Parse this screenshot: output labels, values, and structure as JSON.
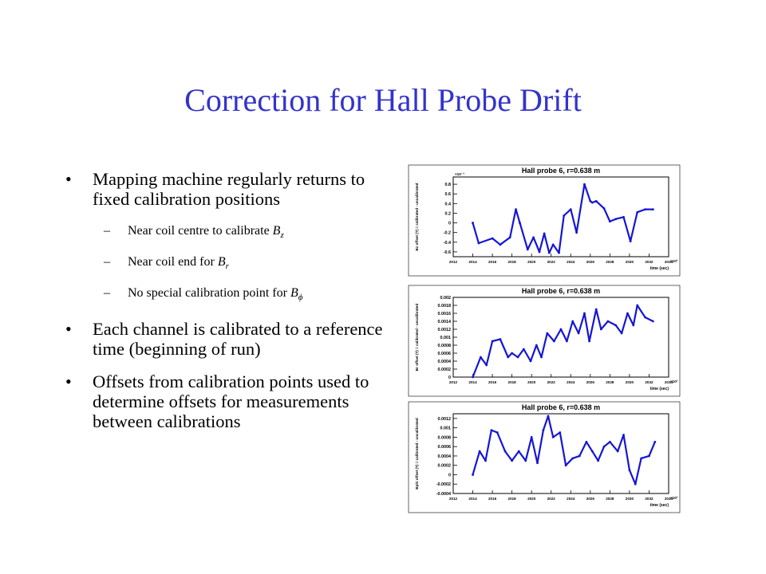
{
  "slide": {
    "title": "Correction for Hall Probe Drift",
    "bullets": [
      {
        "text": "Mapping machine regularly returns to fixed calibration positions"
      },
      {
        "text": "Each channel is calibrated to a reference time (beginning of run)"
      },
      {
        "text": "Offsets from calibration points used to determine offsets for measurements between calibrations"
      }
    ],
    "sub_bullets": [
      {
        "prefix": "Near coil centre to calibrate ",
        "sym": "B",
        "sub": "z"
      },
      {
        "prefix": "Near coil end for ",
        "sym": "B",
        "sub": "r"
      },
      {
        "prefix": "No special calibration point for ",
        "sym": "B",
        "sub": "ϕ"
      }
    ],
    "colors": {
      "title": "#3333cc",
      "series": "#1515d6"
    }
  },
  "chart_data": [
    {
      "type": "line",
      "title": "Hall probe 6, r=0.638 m",
      "ylabel": "Bz offset (T) = calibrated - uncalibrated",
      "xlabel": "time (sec)",
      "x_exponent": "×10³",
      "y_exponent": "×10⁻³",
      "xlim": [
        2012,
        2034
      ],
      "ylim": [
        -0.7,
        0.95
      ],
      "xticks": [
        2012,
        2014,
        2016,
        2018,
        2020,
        2022,
        2024,
        2026,
        2028,
        2030,
        2032,
        2034
      ],
      "yticks": [
        -0.6,
        -0.4,
        -0.2,
        0,
        0.2,
        0.4,
        0.6,
        0.8
      ],
      "series": [
        {
          "x": [
            2014,
            2014.6,
            2016,
            2016.8,
            2017.8,
            2018.4,
            2018.8,
            2019.6,
            2020.2,
            2020.8,
            2021.3,
            2021.8,
            2022.2,
            2022.8,
            2023.3,
            2024,
            2024.6,
            2025.4,
            2026.0,
            2026.2,
            2026.6,
            2027.4,
            2028.0,
            2028.6,
            2029.4,
            2030.1,
            2030.8,
            2031.6,
            2032.4
          ],
          "y": [
            0,
            -0.42,
            -0.32,
            -0.45,
            -0.3,
            0.28,
            0,
            -0.55,
            -0.3,
            -0.6,
            -0.22,
            -0.62,
            -0.45,
            -0.62,
            0.15,
            0.28,
            -0.2,
            0.8,
            0.45,
            0.42,
            0.45,
            0.3,
            0.03,
            0.08,
            0.12,
            -0.38,
            0.22,
            0.28,
            0.28
          ]
        }
      ]
    },
    {
      "type": "line",
      "title": "Hall probe 6, r=0.638 m",
      "ylabel": "Br offset (T) = calibrated - uncalibrated",
      "xlabel": "time (sec)",
      "x_exponent": "×10³",
      "xlim": [
        2012,
        2034
      ],
      "ylim": [
        0,
        0.002
      ],
      "xticks": [
        2012,
        2014,
        2016,
        2018,
        2020,
        2022,
        2024,
        2026,
        2028,
        2030,
        2032,
        2034
      ],
      "yticks": [
        0,
        0.0002,
        0.0004,
        0.0006,
        0.0008,
        0.001,
        0.0012,
        0.0014,
        0.0016,
        0.0018,
        0.002
      ],
      "series": [
        {
          "x": [
            2014,
            2014.8,
            2015.4,
            2016,
            2016.8,
            2017.6,
            2018.0,
            2018.6,
            2019.2,
            2019.9,
            2020.5,
            2021.0,
            2021.6,
            2022.3,
            2023.0,
            2023.6,
            2024.2,
            2024.8,
            2025.4,
            2025.9,
            2026.6,
            2027.1,
            2027.8,
            2028.6,
            2029.2,
            2029.8,
            2030.4,
            2030.8,
            2031.6,
            2032.4
          ],
          "y": [
            0,
            0.0005,
            0.0003,
            0.0009,
            0.00095,
            0.0005,
            0.0006,
            0.0005,
            0.0007,
            0.0004,
            0.0008,
            0.0005,
            0.0011,
            0.0009,
            0.0012,
            0.0009,
            0.0014,
            0.0011,
            0.0016,
            0.0009,
            0.0017,
            0.0012,
            0.0014,
            0.0013,
            0.0011,
            0.0016,
            0.0013,
            0.0018,
            0.0015,
            0.0014
          ]
        }
      ]
    },
    {
      "type": "line",
      "title": "Hall probe 6, r=0.638 m",
      "ylabel": "Bphi offset (T) = calibrated - uncalibrated",
      "xlabel": "time (sec)",
      "x_exponent": "×10³",
      "xlim": [
        2012,
        2034
      ],
      "ylim": [
        -0.0004,
        0.0013
      ],
      "xticks": [
        2012,
        2014,
        2016,
        2018,
        2020,
        2022,
        2024,
        2026,
        2028,
        2030,
        2032,
        2034
      ],
      "yticks": [
        -0.0004,
        -0.0002,
        0,
        0.0002,
        0.0004,
        0.0006,
        0.0008,
        0.001,
        0.0012
      ],
      "series": [
        {
          "x": [
            2014,
            2014.7,
            2015.3,
            2015.9,
            2016.5,
            2017.3,
            2018.0,
            2018.7,
            2019.4,
            2020.0,
            2020.6,
            2021.2,
            2021.7,
            2022.2,
            2022.9,
            2023.5,
            2024.2,
            2024.9,
            2025.6,
            2026.2,
            2026.8,
            2027.4,
            2028.0,
            2028.8,
            2029.4,
            2030.0,
            2030.6,
            2031.2,
            2032.0,
            2032.6
          ],
          "y": [
            0,
            0.0005,
            0.0003,
            0.00095,
            0.0009,
            0.0005,
            0.0003,
            0.0005,
            0.0003,
            0.0008,
            0.00025,
            0.00095,
            0.00125,
            0.0008,
            0.0009,
            0.0002,
            0.00035,
            0.0004,
            0.0007,
            0.0005,
            0.0003,
            0.0006,
            0.0007,
            0.0005,
            0.00085,
            0.0001,
            -0.0002,
            0.00035,
            0.0004,
            0.0007
          ]
        }
      ]
    }
  ]
}
